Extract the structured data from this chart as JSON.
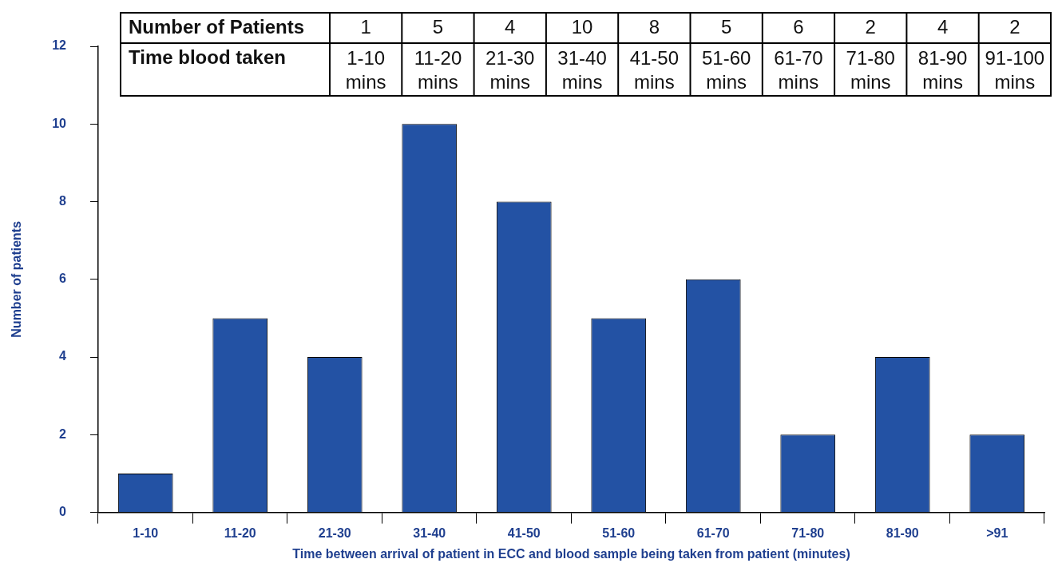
{
  "chart_data": {
    "type": "bar",
    "categories": [
      "1-10",
      "11-20",
      "21-30",
      "31-40",
      "41-50",
      "51-60",
      "61-70",
      "71-80",
      "81-90",
      ">91"
    ],
    "values": [
      1,
      5,
      4,
      10,
      8,
      5,
      6,
      2,
      4,
      2
    ],
    "color": "#2352a4",
    "ylim": [
      0,
      12
    ],
    "yticks": [
      0,
      2,
      4,
      6,
      8,
      10,
      12
    ],
    "xlabel": "Time between arrival of patient in ECC and blood sample being taken from patient (minutes)",
    "ylabel": "Number of patients",
    "annotations": [
      "Number of Patients",
      "1",
      "5",
      "4",
      "10",
      "8",
      "5",
      "6",
      "2",
      "4",
      "2",
      "Time blood taken",
      "1-10 mins",
      "11-20 mins",
      "21-30 mins",
      "31-40 mins",
      "41-50 mins",
      "51-60 mins",
      "61-70 mins",
      "71-80 mins",
      "81-90 mins",
      "91-100 mins"
    ],
    "legend": false
  }
}
